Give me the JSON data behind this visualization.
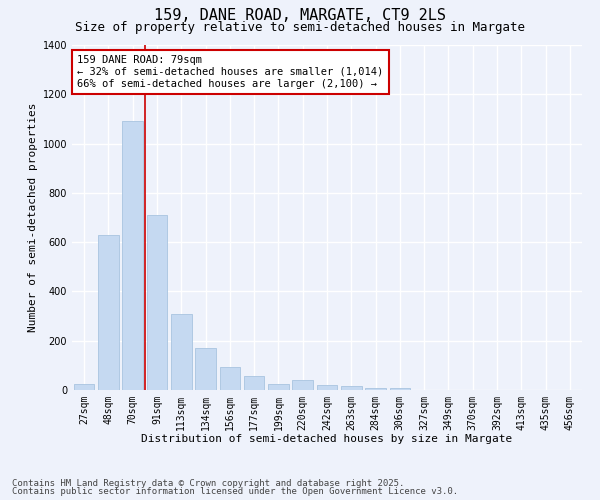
{
  "title": "159, DANE ROAD, MARGATE, CT9 2LS",
  "subtitle": "Size of property relative to semi-detached houses in Margate",
  "xlabel": "Distribution of semi-detached houses by size in Margate",
  "ylabel": "Number of semi-detached properties",
  "categories": [
    "27sqm",
    "48sqm",
    "70sqm",
    "91sqm",
    "113sqm",
    "134sqm",
    "156sqm",
    "177sqm",
    "199sqm",
    "220sqm",
    "242sqm",
    "263sqm",
    "284sqm",
    "306sqm",
    "327sqm",
    "349sqm",
    "370sqm",
    "392sqm",
    "413sqm",
    "435sqm",
    "456sqm"
  ],
  "values": [
    25,
    630,
    1090,
    710,
    310,
    170,
    95,
    55,
    25,
    40,
    20,
    15,
    10,
    7,
    0,
    0,
    0,
    0,
    0,
    0,
    0
  ],
  "bar_color": "#c5d9f1",
  "bar_edge_color": "#a8c4e0",
  "vline_color": "#cc0000",
  "vline_x_index": 2,
  "annotation_line1": "159 DANE ROAD: 79sqm",
  "annotation_line2": "← 32% of semi-detached houses are smaller (1,014)",
  "annotation_line3": "66% of semi-detached houses are larger (2,100) →",
  "ylim": [
    0,
    1400
  ],
  "yticks": [
    0,
    200,
    400,
    600,
    800,
    1000,
    1200,
    1400
  ],
  "footer1": "Contains HM Land Registry data © Crown copyright and database right 2025.",
  "footer2": "Contains public sector information licensed under the Open Government Licence v3.0.",
  "background_color": "#eef2fb",
  "grid_color": "#ffffff",
  "title_fontsize": 11,
  "subtitle_fontsize": 9,
  "xlabel_fontsize": 8,
  "ylabel_fontsize": 8,
  "tick_fontsize": 7,
  "annotation_fontsize": 7.5,
  "footer_fontsize": 6.5
}
